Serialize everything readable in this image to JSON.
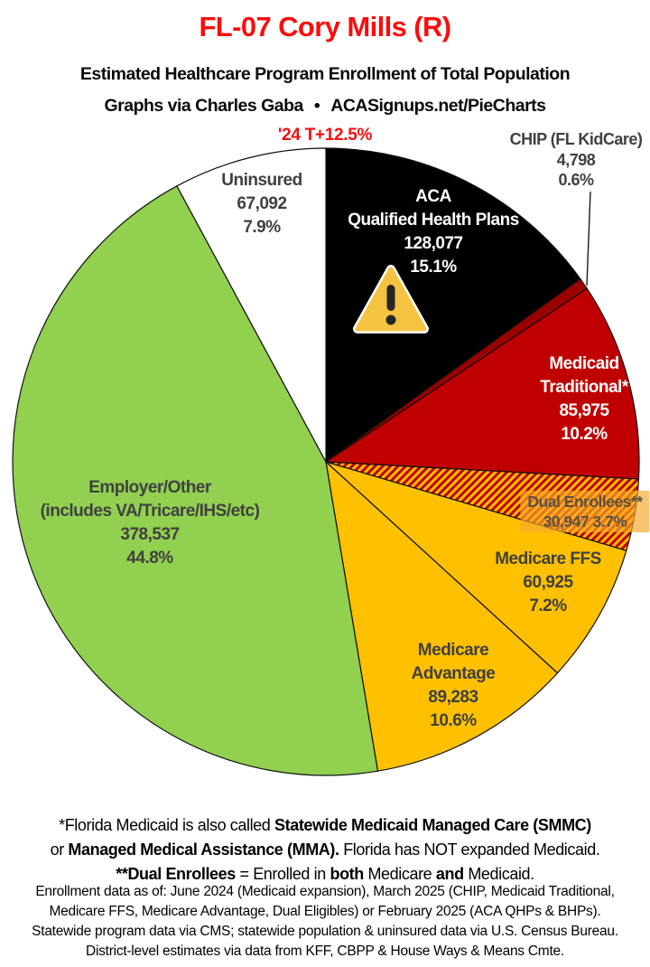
{
  "header": {
    "title": "FL-07 Cory Mills (R)",
    "subtitle": "Estimated Healthcare Program Enrollment of Total Population",
    "credit_left": "Graphs via Charles Gaba",
    "credit_bullet": "•",
    "credit_right": "ACASignups.net/PieCharts",
    "trend": "'24 T+12.5%",
    "title_color": "#f90d0d",
    "trend_color": "#f90d0d"
  },
  "chart_data": {
    "type": "pie",
    "title": "Estimated Healthcare Program Enrollment of Total Population",
    "units": "people",
    "start_angle": "12-oclock",
    "direction": "clockwise",
    "legend_position": "labels-on-slices",
    "hatch_colors": [
      "#c00000",
      "#ffc000"
    ],
    "slices": [
      {
        "name": "ACA",
        "name2": "Qualified Health Plans",
        "value": "128,077",
        "value_num": 128077,
        "pct": "15.1%",
        "pct_num": 15.1,
        "color": "#000000",
        "label_color": "#ffffff",
        "has_warning_icon": true
      },
      {
        "name": "CHIP (FL KidCare)",
        "value": "4,798",
        "value_num": 4798,
        "pct": "0.6%",
        "pct_num": 0.6,
        "color": "#9b0000",
        "label_color": "#404040",
        "label_outside": true
      },
      {
        "name": "Medicaid",
        "name2": "Traditional*",
        "value": "85,975",
        "value_num": 85975,
        "pct": "10.2%",
        "pct_num": 10.2,
        "color": "#c00000",
        "label_color": "#ffffff"
      },
      {
        "name": "Dual Enrollees**",
        "value": "30,947",
        "value_num": 30947,
        "pct": "3.7%",
        "pct_num": 3.7,
        "color": "hatch",
        "label_color": "#5c5244"
      },
      {
        "name": "Medicare FFS",
        "value": "60,925",
        "value_num": 60925,
        "pct": "7.2%",
        "pct_num": 7.2,
        "color": "#ffc000",
        "label_color": "#404040"
      },
      {
        "name": "Medicare",
        "name2": "Advantage",
        "value": "89,283",
        "value_num": 89283,
        "pct": "10.6%",
        "pct_num": 10.6,
        "color": "#ffc000",
        "label_color": "#404040"
      },
      {
        "name": "Employer/Other",
        "name2": "(includes VA/Tricare/IHS/etc)",
        "value": "378,537",
        "value_num": 378537,
        "pct": "44.8%",
        "pct_num": 44.8,
        "color": "#92d050",
        "label_color": "#404040"
      },
      {
        "name": "Uninsured",
        "value": "67,092",
        "value_num": 67092,
        "pct": "7.9%",
        "pct_num": 7.9,
        "color": "#ffffff",
        "label_color": "#404040"
      }
    ]
  },
  "warning_icon": {
    "triangle_fill": "#f5c342",
    "outline": "#ffffff",
    "mark_color": "#262626"
  },
  "footnotes": {
    "note1": {
      "l1_regular": "*Florida Medicaid is also called ",
      "l1_bold": "Statewide Medicaid Managed Care (SMMC)",
      "l2_regular1": "or ",
      "l2_bold": "Managed Medical Assistance (MMA).",
      "l2_regular2": " Florida has NOT expanded Medicaid.",
      "l3_bold1": "**Dual Enrollees",
      "l3_regular1": " = Enrolled in ",
      "l3_bold2": "both",
      "l3_regular2": " Medicare ",
      "l3_bold3": "and",
      "l3_regular3": " Medicaid."
    },
    "note2_lines": [
      "Enrollment data as of: June 2024 (Medicaid expansion), March 2025 (CHIP, Medicaid Traditional,",
      "Medicare FFS, Medicare Advantage, Dual Eligibles) or February 2025 (ACA QHPs & BHPs).",
      "Statewide program data via CMS; statewide population & uninsured data via U.S. Census Bureau.",
      "District-level estimates via data from KFF, CBPP & House Ways & Means Cmte."
    ]
  }
}
